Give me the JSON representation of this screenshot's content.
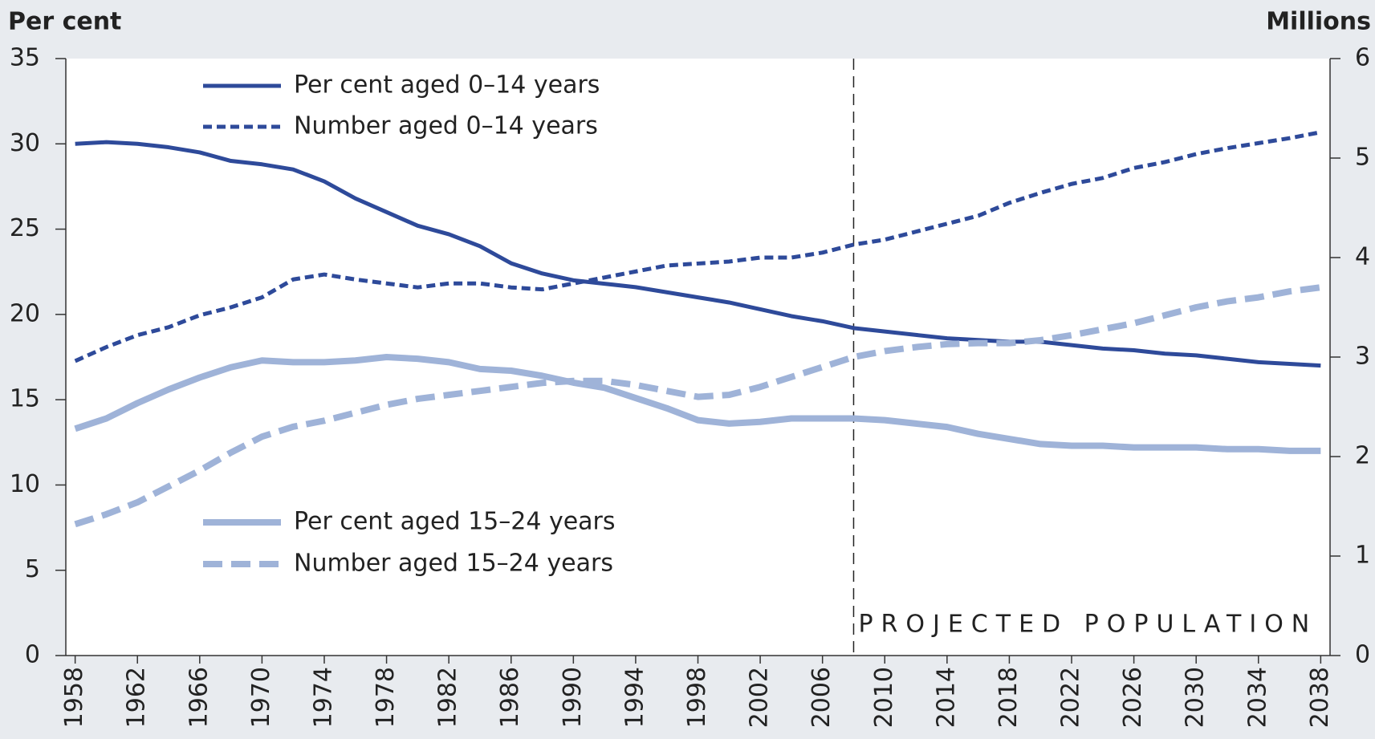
{
  "chart_data": {
    "type": "line",
    "y_label": "Per cent",
    "y2_label": "Millions",
    "annotation": "PROJECTED POPULATION",
    "projection_start": 2008,
    "x": [
      1958,
      1960,
      1962,
      1964,
      1966,
      1968,
      1970,
      1972,
      1974,
      1976,
      1978,
      1980,
      1982,
      1984,
      1986,
      1988,
      1990,
      1992,
      1994,
      1996,
      1998,
      2000,
      2002,
      2004,
      2006,
      2008,
      2010,
      2012,
      2014,
      2016,
      2018,
      2020,
      2022,
      2024,
      2026,
      2028,
      2030,
      2032,
      2034,
      2036,
      2038
    ],
    "xlim": [
      1957.4,
      2038.6
    ],
    "xticks": [
      1958,
      1962,
      1966,
      1970,
      1974,
      1978,
      1982,
      1986,
      1990,
      1994,
      1998,
      2002,
      2006,
      2010,
      2014,
      2018,
      2022,
      2026,
      2030,
      2034,
      2038
    ],
    "ylim": [
      0,
      35
    ],
    "yticks": [
      0,
      5,
      10,
      15,
      20,
      25,
      30,
      35
    ],
    "y2lim": [
      0,
      6
    ],
    "y2ticks": [
      0,
      1,
      2,
      3,
      4,
      5,
      6
    ],
    "series": [
      {
        "name": "Per cent aged 0–14 years",
        "color": "#2e4a9a",
        "dash": "solid",
        "axis": "y",
        "values": [
          30.0,
          30.1,
          30.0,
          29.8,
          29.5,
          29.0,
          28.8,
          28.5,
          27.8,
          26.8,
          26.0,
          25.2,
          24.7,
          24.0,
          23.0,
          22.4,
          22.0,
          21.8,
          21.6,
          21.3,
          21.0,
          20.7,
          20.3,
          19.9,
          19.6,
          19.2,
          19.0,
          18.8,
          18.6,
          18.5,
          18.4,
          18.4,
          18.2,
          18.0,
          17.9,
          17.7,
          17.6,
          17.4,
          17.2,
          17.1,
          17.0
        ]
      },
      {
        "name": "Number aged 0–14 years",
        "color": "#2e4a9a",
        "dash": "dotted",
        "axis": "y2",
        "values": [
          2.96,
          3.1,
          3.22,
          3.3,
          3.42,
          3.5,
          3.6,
          3.78,
          3.83,
          3.78,
          3.74,
          3.7,
          3.74,
          3.74,
          3.7,
          3.68,
          3.74,
          3.8,
          3.86,
          3.92,
          3.94,
          3.96,
          4.0,
          4.0,
          4.05,
          4.13,
          4.18,
          4.26,
          4.34,
          4.42,
          4.55,
          4.65,
          4.74,
          4.8,
          4.9,
          4.96,
          5.04,
          5.1,
          5.15,
          5.2,
          5.26
        ]
      },
      {
        "name": "Per cent aged 15–24 years",
        "color": "#9fb3d8",
        "dash": "solid",
        "axis": "y",
        "values": [
          13.3,
          13.9,
          14.8,
          15.6,
          16.3,
          16.9,
          17.3,
          17.2,
          17.2,
          17.3,
          17.5,
          17.4,
          17.2,
          16.8,
          16.7,
          16.4,
          16.0,
          15.7,
          15.1,
          14.5,
          13.8,
          13.6,
          13.7,
          13.9,
          13.9,
          13.9,
          13.8,
          13.6,
          13.4,
          13.0,
          12.7,
          12.4,
          12.3,
          12.3,
          12.2,
          12.2,
          12.2,
          12.1,
          12.1,
          12.0,
          12.0
        ]
      },
      {
        "name": "Number aged 15–24 years",
        "color": "#9fb3d8",
        "dash": "dashed",
        "axis": "y2",
        "values": [
          1.32,
          1.42,
          1.54,
          1.7,
          1.86,
          2.04,
          2.2,
          2.3,
          2.36,
          2.44,
          2.52,
          2.58,
          2.62,
          2.66,
          2.7,
          2.74,
          2.76,
          2.76,
          2.72,
          2.66,
          2.6,
          2.62,
          2.7,
          2.8,
          2.9,
          3.0,
          3.06,
          3.1,
          3.13,
          3.14,
          3.14,
          3.17,
          3.22,
          3.28,
          3.34,
          3.42,
          3.5,
          3.56,
          3.6,
          3.66,
          3.7
        ]
      }
    ]
  }
}
